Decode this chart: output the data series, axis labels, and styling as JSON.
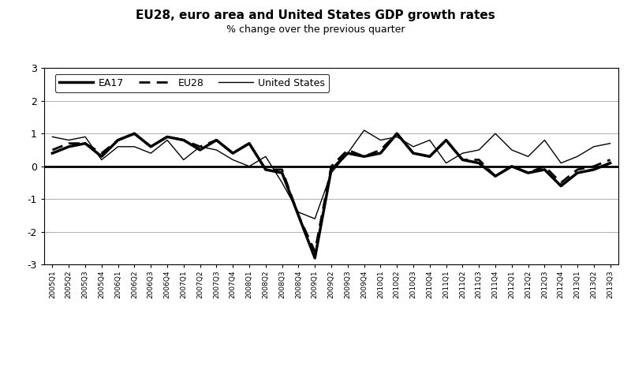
{
  "title": "EU28, euro area and United States GDP growth rates",
  "subtitle": "% change over the previous quarter",
  "title_fontsize": 11,
  "subtitle_fontsize": 9,
  "ylim": [
    -3,
    3
  ],
  "yticks": [
    -3,
    -2,
    -1,
    0,
    1,
    2,
    3
  ],
  "quarters": [
    "2005Q1",
    "2005Q2",
    "2005Q3",
    "2005Q4",
    "2006Q1",
    "2006Q2",
    "2006Q3",
    "2006Q4",
    "2007Q1",
    "2007Q2",
    "2007Q3",
    "2007Q4",
    "2008Q1",
    "2008Q2",
    "2008Q3",
    "2008Q4",
    "2009Q1",
    "2009Q2",
    "2009Q3",
    "2009Q4",
    "2010Q1",
    "2010Q2",
    "2010Q3",
    "2010Q4",
    "2011Q1",
    "2011Q2",
    "2011Q3",
    "2011Q4",
    "2012Q1",
    "2012Q2",
    "2012Q3",
    "2012Q4",
    "2013Q1",
    "2013Q2",
    "2013Q3"
  ],
  "EA17": [
    0.4,
    0.6,
    0.7,
    0.3,
    0.8,
    1.0,
    0.6,
    0.9,
    0.8,
    0.5,
    0.8,
    0.4,
    0.7,
    -0.1,
    -0.2,
    -1.5,
    -2.8,
    -0.1,
    0.4,
    0.3,
    0.4,
    1.0,
    0.4,
    0.3,
    0.8,
    0.2,
    0.1,
    -0.3,
    0.0,
    -0.2,
    -0.1,
    -0.6,
    -0.2,
    -0.1,
    0.1
  ],
  "EU28": [
    0.5,
    0.7,
    0.7,
    0.4,
    0.8,
    1.0,
    0.6,
    0.9,
    0.8,
    0.6,
    0.8,
    0.4,
    0.7,
    -0.1,
    -0.1,
    -1.5,
    -2.6,
    0.0,
    0.5,
    0.3,
    0.5,
    1.0,
    0.4,
    0.3,
    0.8,
    0.2,
    0.2,
    -0.3,
    0.0,
    -0.2,
    0.0,
    -0.5,
    -0.1,
    0.0,
    0.2
  ],
  "US": [
    0.9,
    0.8,
    0.9,
    0.2,
    0.6,
    0.6,
    0.4,
    0.8,
    0.2,
    0.6,
    0.5,
    0.2,
    0.0,
    0.3,
    -0.5,
    -1.4,
    -1.6,
    -0.2,
    0.4,
    1.1,
    0.8,
    0.9,
    0.6,
    0.8,
    0.1,
    0.4,
    0.5,
    1.0,
    0.5,
    0.3,
    0.8,
    0.1,
    0.3,
    0.6,
    0.7
  ],
  "EA17_lw": 2.5,
  "EU28_lw": 2.0,
  "US_lw": 1.0,
  "line_color": "#000000",
  "bg_color": "#ffffff",
  "grid_color": "#b0b0b0",
  "legend_fontsize": 9,
  "xtick_fontsize": 6.5,
  "ytick_fontsize": 9
}
